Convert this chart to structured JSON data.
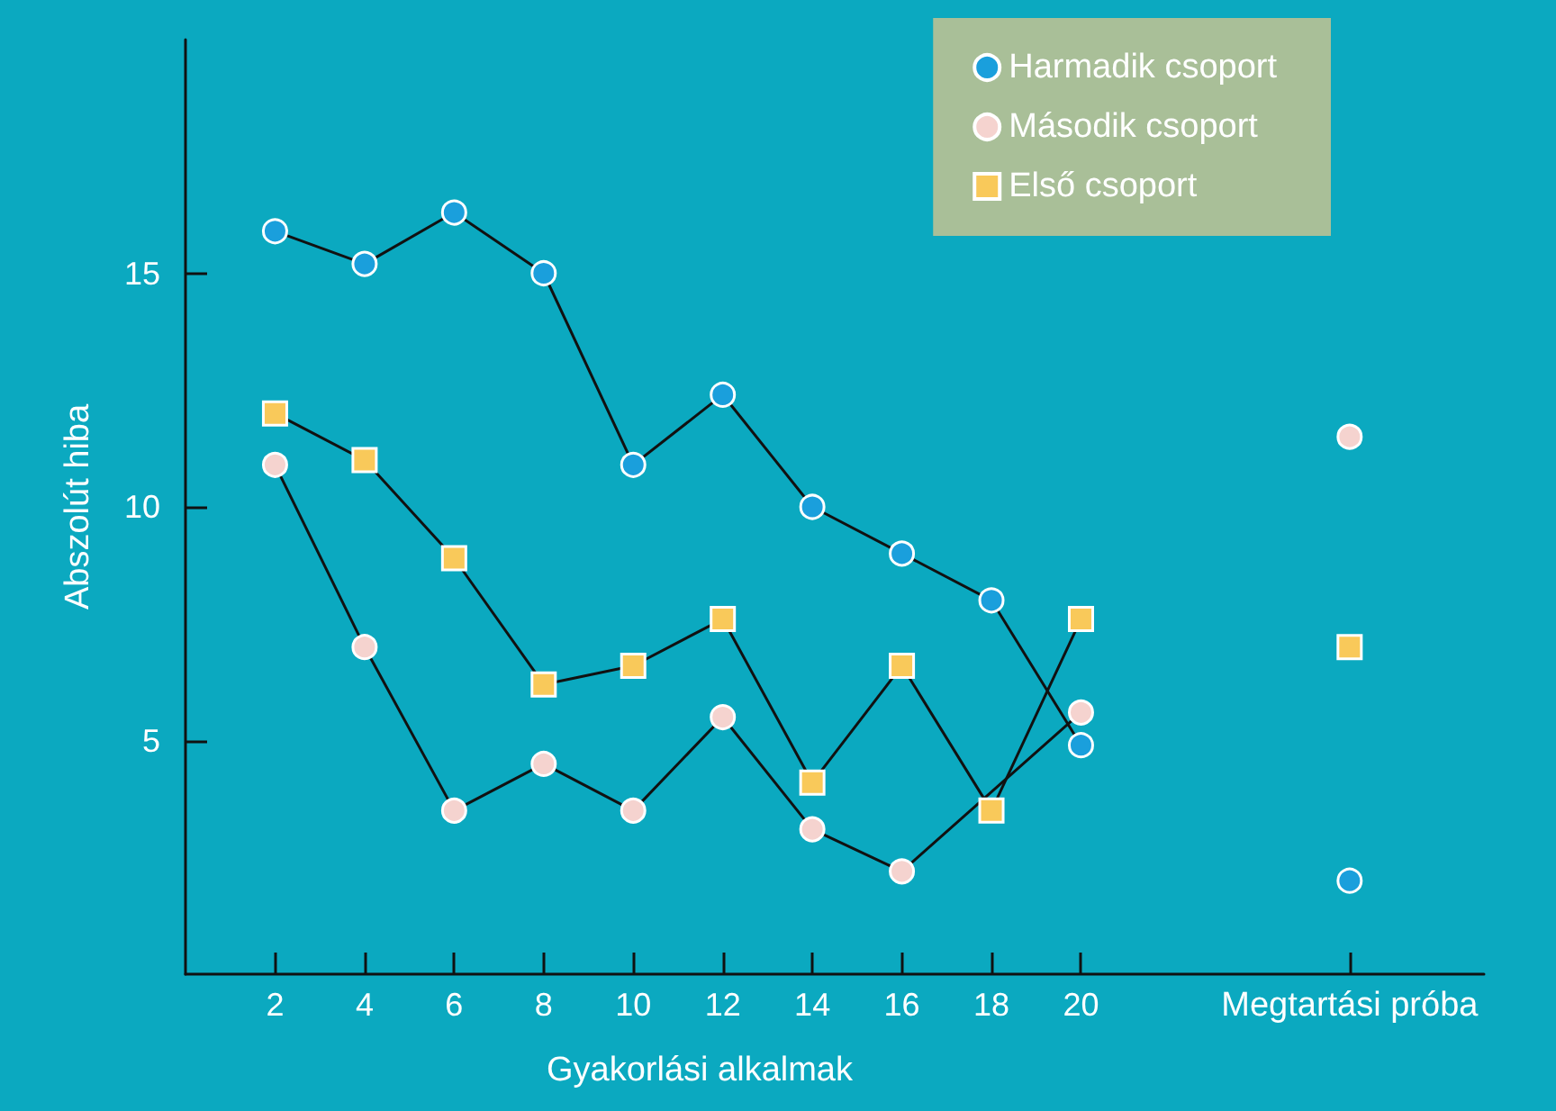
{
  "chart_data": {
    "type": "line",
    "xlabel": "Gyakorlási alkalmak",
    "ylabel": "Abszolút hiba",
    "xlim": [
      0,
      29
    ],
    "ylim": [
      0,
      20
    ],
    "xticks": [
      2,
      4,
      6,
      8,
      10,
      12,
      14,
      16,
      18,
      20,
      {
        "value": 26,
        "label": "Megtartási próba"
      }
    ],
    "yticks": [
      5,
      10,
      15
    ],
    "grid": false,
    "legend": "top right",
    "line_style": "solid",
    "series": [
      {
        "name": "Harmadik csoport",
        "color": "#1a9fdc",
        "marker": "circle",
        "x": [
          2,
          4,
          6,
          8,
          10,
          12,
          14,
          16,
          18,
          20,
          22,
          26
        ],
        "values": [
          15.9,
          15.2,
          16.3,
          15.0,
          10.9,
          12.4,
          10.0,
          9.0,
          8.0,
          4.9,
          null,
          2.0
        ]
      },
      {
        "name": "Második csoport",
        "color": "#f5d3cf",
        "marker": "circle",
        "x": [
          2,
          4,
          6,
          8,
          10,
          12,
          14,
          16,
          20,
          22,
          26
        ],
        "values": [
          10.9,
          7.0,
          3.5,
          4.5,
          3.5,
          5.5,
          3.1,
          2.2,
          5.6,
          null,
          11.5
        ]
      },
      {
        "name": "Első csoport",
        "color": "#f9c95a",
        "marker": "square",
        "x": [
          2,
          4,
          6,
          8,
          10,
          12,
          14,
          16,
          18,
          20,
          22,
          26
        ],
        "values": [
          12.0,
          11.0,
          8.9,
          6.2,
          6.6,
          7.6,
          4.1,
          6.6,
          3.5,
          7.6,
          null,
          7.0
        ]
      }
    ]
  }
}
